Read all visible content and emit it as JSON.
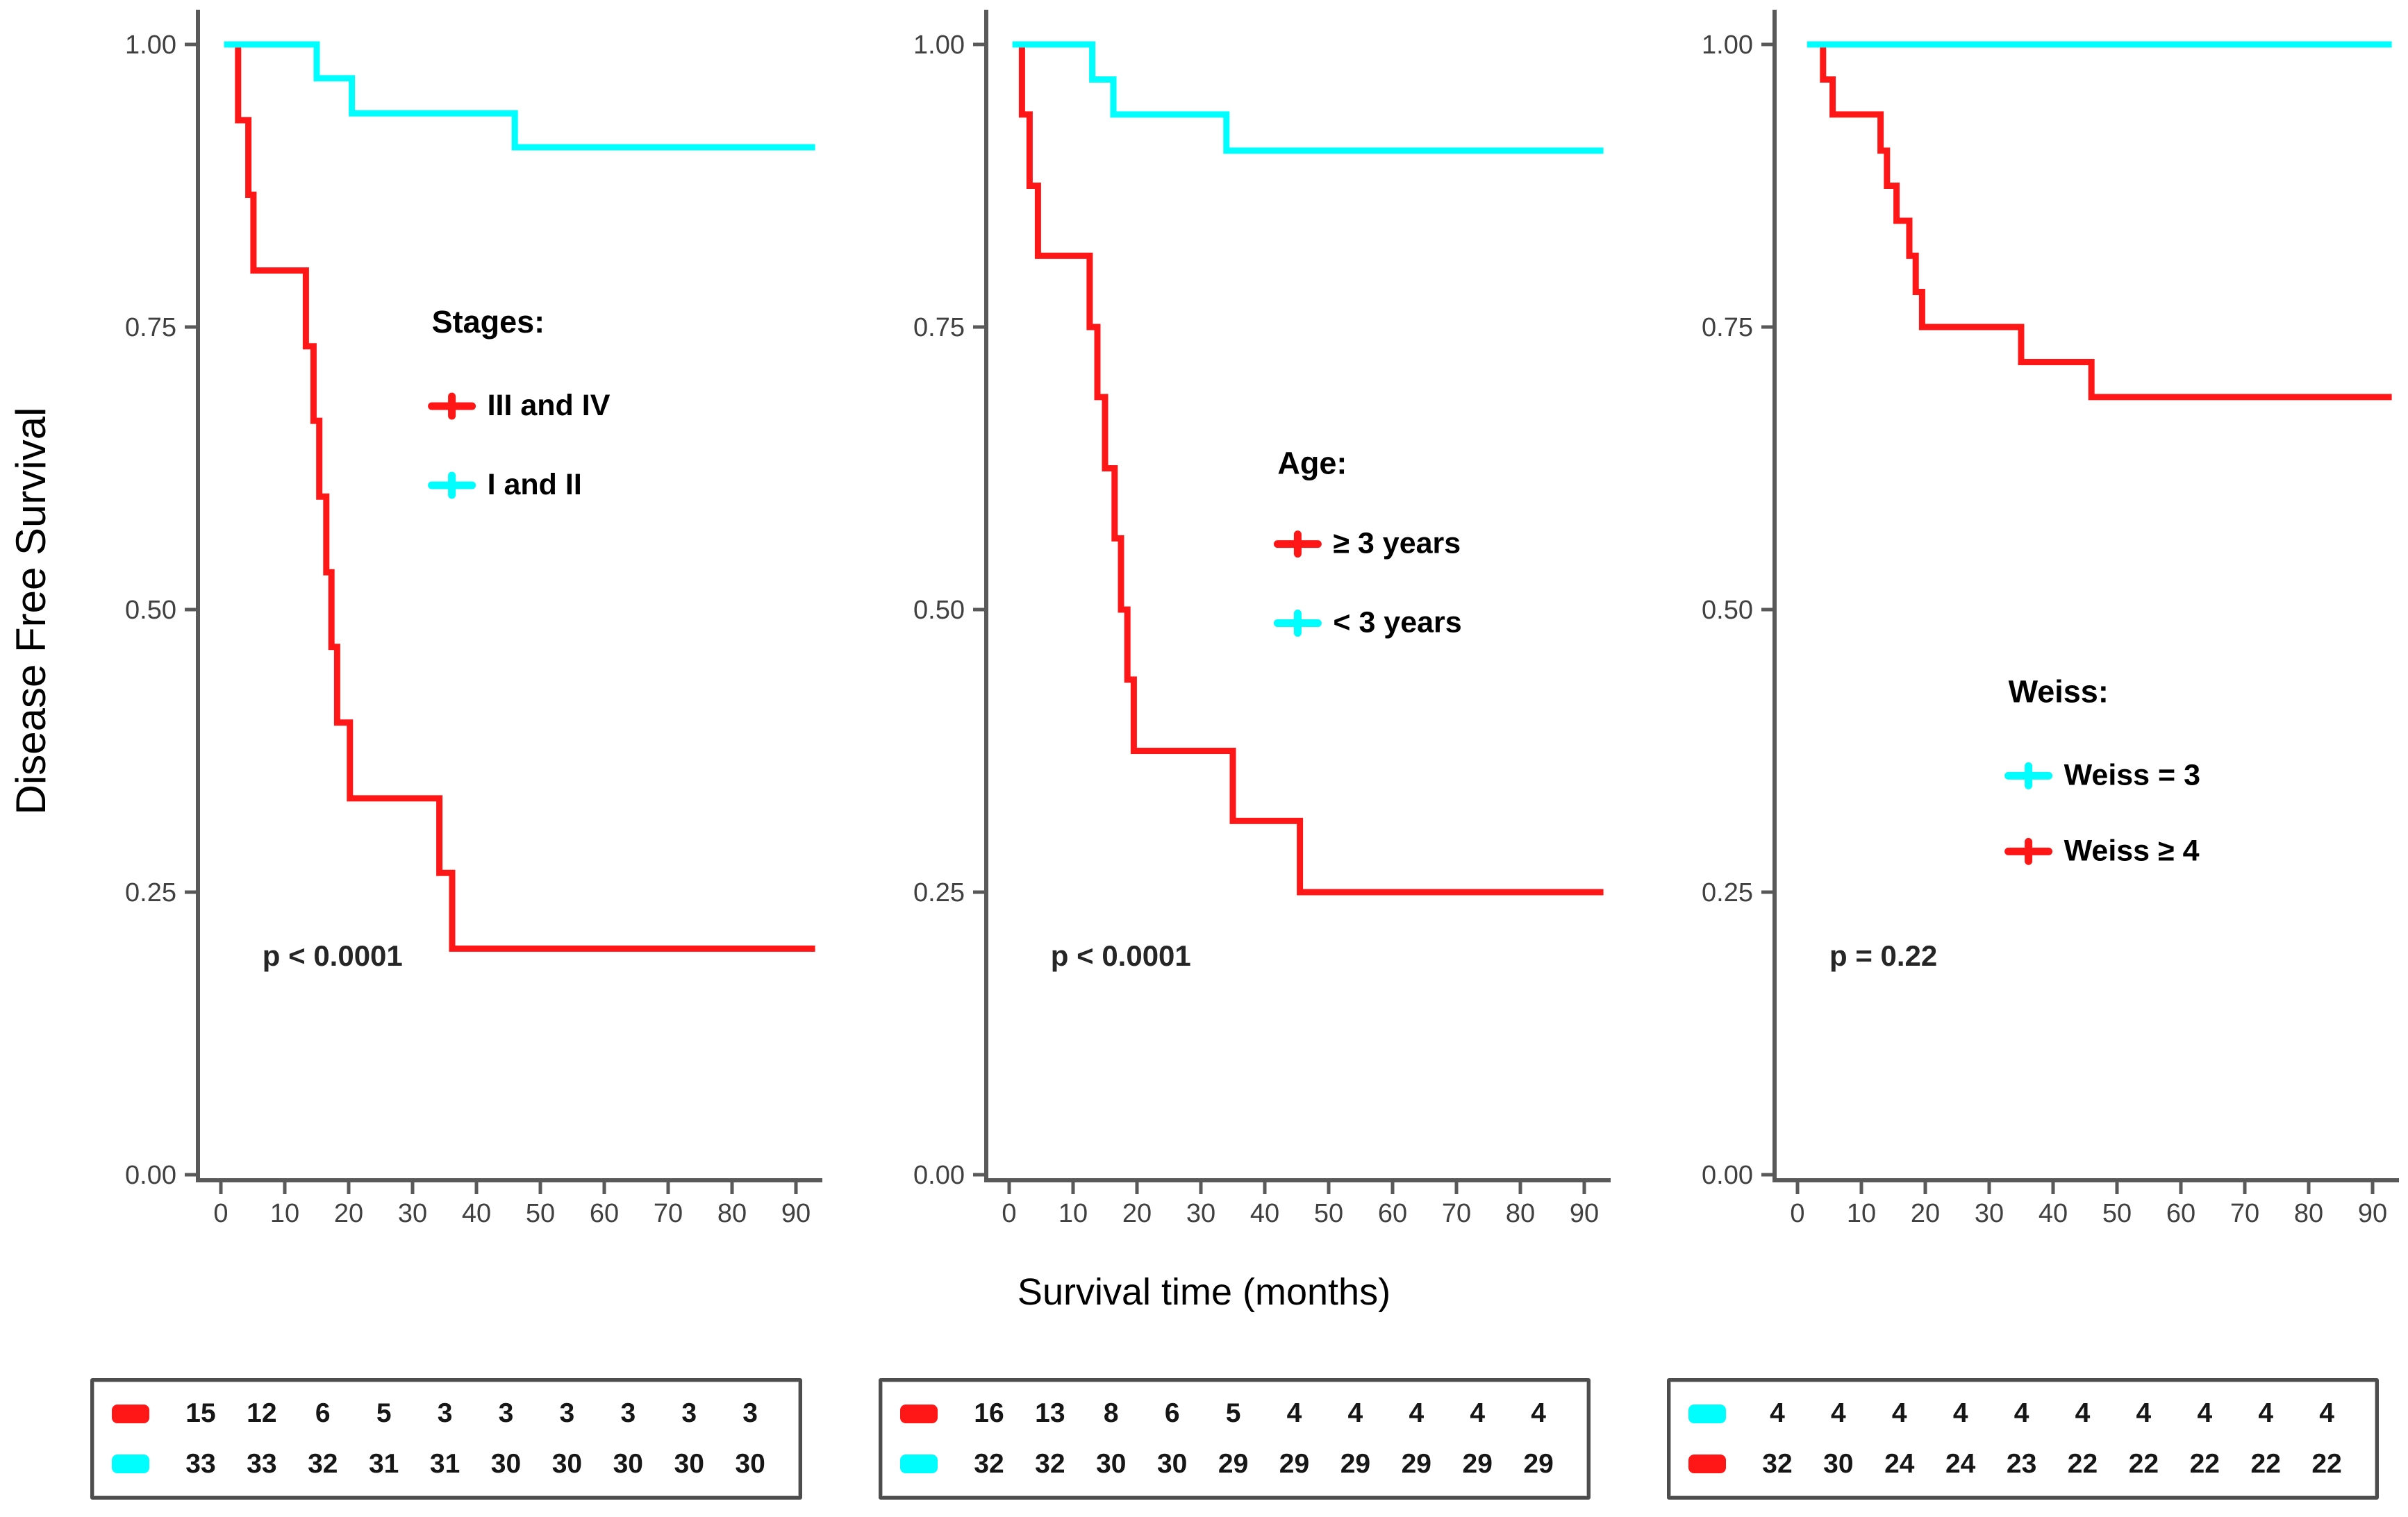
{
  "ylabel": "Disease Free Survival",
  "xlabel": "Survival time (months)",
  "colors": {
    "red": "#ff1717",
    "cyan": "#00fefe",
    "axis": "#595959",
    "tick_text": "#404040",
    "text": "#000000",
    "p_text": "#262626",
    "table_border": "#4d4d4d"
  },
  "chart_data": [
    {
      "type": "line",
      "subtype": "kaplan-meier-step",
      "legend_title": "Stages:",
      "p_label": "p < 0.0001",
      "p_pos": {
        "x": 6.5,
        "y": 0.185
      },
      "legend_pos": {
        "x": 33,
        "title_y": 0.745,
        "item_ys": [
          0.672,
          0.602
        ]
      },
      "x_ticks": [
        0,
        10,
        20,
        30,
        40,
        50,
        60,
        70,
        80,
        90
      ],
      "y_ticks": [
        {
          "v": 1.0,
          "label": "1.00"
        },
        {
          "v": 0.75,
          "label": "0.75"
        },
        {
          "v": 0.5,
          "label": "0.50"
        },
        {
          "v": 0.25,
          "label": "0.25"
        },
        {
          "v": 0.0,
          "label": "0.00"
        }
      ],
      "xlim": [
        0,
        93
      ],
      "ylim": [
        0,
        1
      ],
      "series": [
        {
          "name": "III and IV",
          "color": "red",
          "points": [
            [
              1.5,
              1
            ],
            [
              2.7,
              1
            ],
            [
              2.7,
              0.933
            ],
            [
              4.3,
              0.933
            ],
            [
              4.3,
              0.867
            ],
            [
              5.1,
              0.867
            ],
            [
              5.1,
              0.8
            ],
            [
              13.3,
              0.8
            ],
            [
              13.3,
              0.733
            ],
            [
              14.5,
              0.733
            ],
            [
              14.5,
              0.667
            ],
            [
              15.4,
              0.667
            ],
            [
              15.4,
              0.6
            ],
            [
              16.5,
              0.6
            ],
            [
              16.5,
              0.533
            ],
            [
              17.3,
              0.533
            ],
            [
              17.3,
              0.467
            ],
            [
              18.2,
              0.467
            ],
            [
              18.2,
              0.4
            ],
            [
              20.2,
              0.4
            ],
            [
              20.2,
              0.333
            ],
            [
              34.2,
              0.333
            ],
            [
              34.2,
              0.267
            ],
            [
              36.2,
              0.267
            ],
            [
              36.2,
              0.2
            ],
            [
              93,
              0.2
            ]
          ]
        },
        {
          "name": "I and II",
          "color": "cyan",
          "points": [
            [
              0.5,
              1
            ],
            [
              15,
              1
            ],
            [
              15,
              0.97
            ],
            [
              20.5,
              0.97
            ],
            [
              20.5,
              0.939
            ],
            [
              46,
              0.939
            ],
            [
              46,
              0.909
            ],
            [
              93,
              0.909
            ]
          ]
        }
      ],
      "legend": [
        {
          "label": "III and IV",
          "color": "red"
        },
        {
          "label": "I and II",
          "color": "cyan"
        }
      ],
      "risk_table": [
        {
          "color": "red",
          "values": [
            15,
            12,
            6,
            5,
            3,
            3,
            3,
            3,
            3,
            3
          ]
        },
        {
          "color": "cyan",
          "values": [
            33,
            33,
            32,
            31,
            31,
            30,
            30,
            30,
            30,
            30
          ]
        }
      ]
    },
    {
      "type": "line",
      "subtype": "kaplan-meier-step",
      "legend_title": "Age:",
      "p_label": "p < 0.0001",
      "p_pos": {
        "x": 6.5,
        "y": 0.185
      },
      "legend_pos": {
        "x": 42,
        "title_y": 0.62,
        "item_ys": [
          0.55,
          0.48
        ]
      },
      "x_ticks": [
        0,
        10,
        20,
        30,
        40,
        50,
        60,
        70,
        80,
        90
      ],
      "y_ticks": [
        {
          "v": 1.0,
          "label": "1.00"
        },
        {
          "v": 0.75,
          "label": "0.75"
        },
        {
          "v": 0.5,
          "label": "0.50"
        },
        {
          "v": 0.25,
          "label": "0.25"
        },
        {
          "v": 0.0,
          "label": "0.00"
        }
      ],
      "xlim": [
        0,
        93
      ],
      "ylim": [
        0,
        1
      ],
      "series": [
        {
          "name": "≥ 3 years",
          "color": "red",
          "points": [
            [
              1.5,
              1
            ],
            [
              2,
              1
            ],
            [
              2,
              0.938
            ],
            [
              3.2,
              0.938
            ],
            [
              3.2,
              0.875
            ],
            [
              4.5,
              0.875
            ],
            [
              4.5,
              0.813
            ],
            [
              12.6,
              0.813
            ],
            [
              12.6,
              0.75
            ],
            [
              13.8,
              0.75
            ],
            [
              13.8,
              0.688
            ],
            [
              15,
              0.688
            ],
            [
              15,
              0.625
            ],
            [
              16.5,
              0.625
            ],
            [
              16.5,
              0.563
            ],
            [
              17.5,
              0.563
            ],
            [
              17.5,
              0.5
            ],
            [
              18.5,
              0.5
            ],
            [
              18.5,
              0.438
            ],
            [
              19.5,
              0.438
            ],
            [
              19.5,
              0.375
            ],
            [
              35,
              0.375
            ],
            [
              35,
              0.313
            ],
            [
              45.5,
              0.313
            ],
            [
              45.5,
              0.25
            ],
            [
              93,
              0.25
            ]
          ]
        },
        {
          "name": "< 3 years",
          "color": "cyan",
          "points": [
            [
              0.5,
              1
            ],
            [
              13,
              1
            ],
            [
              13,
              0.969
            ],
            [
              16.3,
              0.969
            ],
            [
              16.3,
              0.938
            ],
            [
              34,
              0.938
            ],
            [
              34,
              0.906
            ],
            [
              93,
              0.906
            ]
          ]
        }
      ],
      "legend": [
        {
          "label": "≥ 3 years",
          "color": "red"
        },
        {
          "label": "< 3 years",
          "color": "cyan"
        }
      ],
      "risk_table": [
        {
          "color": "red",
          "values": [
            16,
            13,
            8,
            6,
            5,
            4,
            4,
            4,
            4,
            4
          ]
        },
        {
          "color": "cyan",
          "values": [
            32,
            32,
            30,
            30,
            29,
            29,
            29,
            29,
            29,
            29
          ]
        }
      ]
    },
    {
      "type": "line",
      "subtype": "kaplan-meier-step",
      "legend_title": "Weiss:",
      "p_label": "p = 0.22",
      "p_pos": {
        "x": 5,
        "y": 0.185
      },
      "legend_pos": {
        "x": 33,
        "title_y": 0.418,
        "item_ys": [
          0.345,
          0.278
        ]
      },
      "x_ticks": [
        0,
        10,
        20,
        30,
        40,
        50,
        60,
        70,
        80,
        90
      ],
      "y_ticks": [
        {
          "v": 1.0,
          "label": "1.00"
        },
        {
          "v": 0.75,
          "label": "0.75"
        },
        {
          "v": 0.5,
          "label": "0.50"
        },
        {
          "v": 0.25,
          "label": "0.25"
        },
        {
          "v": 0.0,
          "label": "0.00"
        }
      ],
      "xlim": [
        0,
        93
      ],
      "ylim": [
        0,
        1
      ],
      "series": [
        {
          "name": "Weiss ≥ 4",
          "color": "red",
          "points": [
            [
              1.5,
              1
            ],
            [
              4,
              1
            ],
            [
              4,
              0.969
            ],
            [
              5.5,
              0.969
            ],
            [
              5.5,
              0.938
            ],
            [
              13,
              0.938
            ],
            [
              13,
              0.906
            ],
            [
              14,
              0.906
            ],
            [
              14,
              0.875
            ],
            [
              15.5,
              0.875
            ],
            [
              15.5,
              0.844
            ],
            [
              17.5,
              0.844
            ],
            [
              17.5,
              0.813
            ],
            [
              18.5,
              0.813
            ],
            [
              18.5,
              0.781
            ],
            [
              19.5,
              0.781
            ],
            [
              19.5,
              0.75
            ],
            [
              35,
              0.75
            ],
            [
              35,
              0.719
            ],
            [
              46,
              0.719
            ],
            [
              46,
              0.688
            ],
            [
              93,
              0.688
            ]
          ]
        },
        {
          "name": "Weiss = 3",
          "color": "cyan",
          "points": [
            [
              1.5,
              1
            ],
            [
              93,
              1
            ]
          ]
        }
      ],
      "legend": [
        {
          "label": "Weiss = 3",
          "color": "cyan"
        },
        {
          "label": "Weiss ≥ 4",
          "color": "red"
        }
      ],
      "risk_table": [
        {
          "color": "cyan",
          "values": [
            4,
            4,
            4,
            4,
            4,
            4,
            4,
            4,
            4,
            4
          ]
        },
        {
          "color": "red",
          "values": [
            32,
            30,
            24,
            24,
            23,
            22,
            22,
            22,
            22,
            22
          ]
        }
      ]
    }
  ]
}
